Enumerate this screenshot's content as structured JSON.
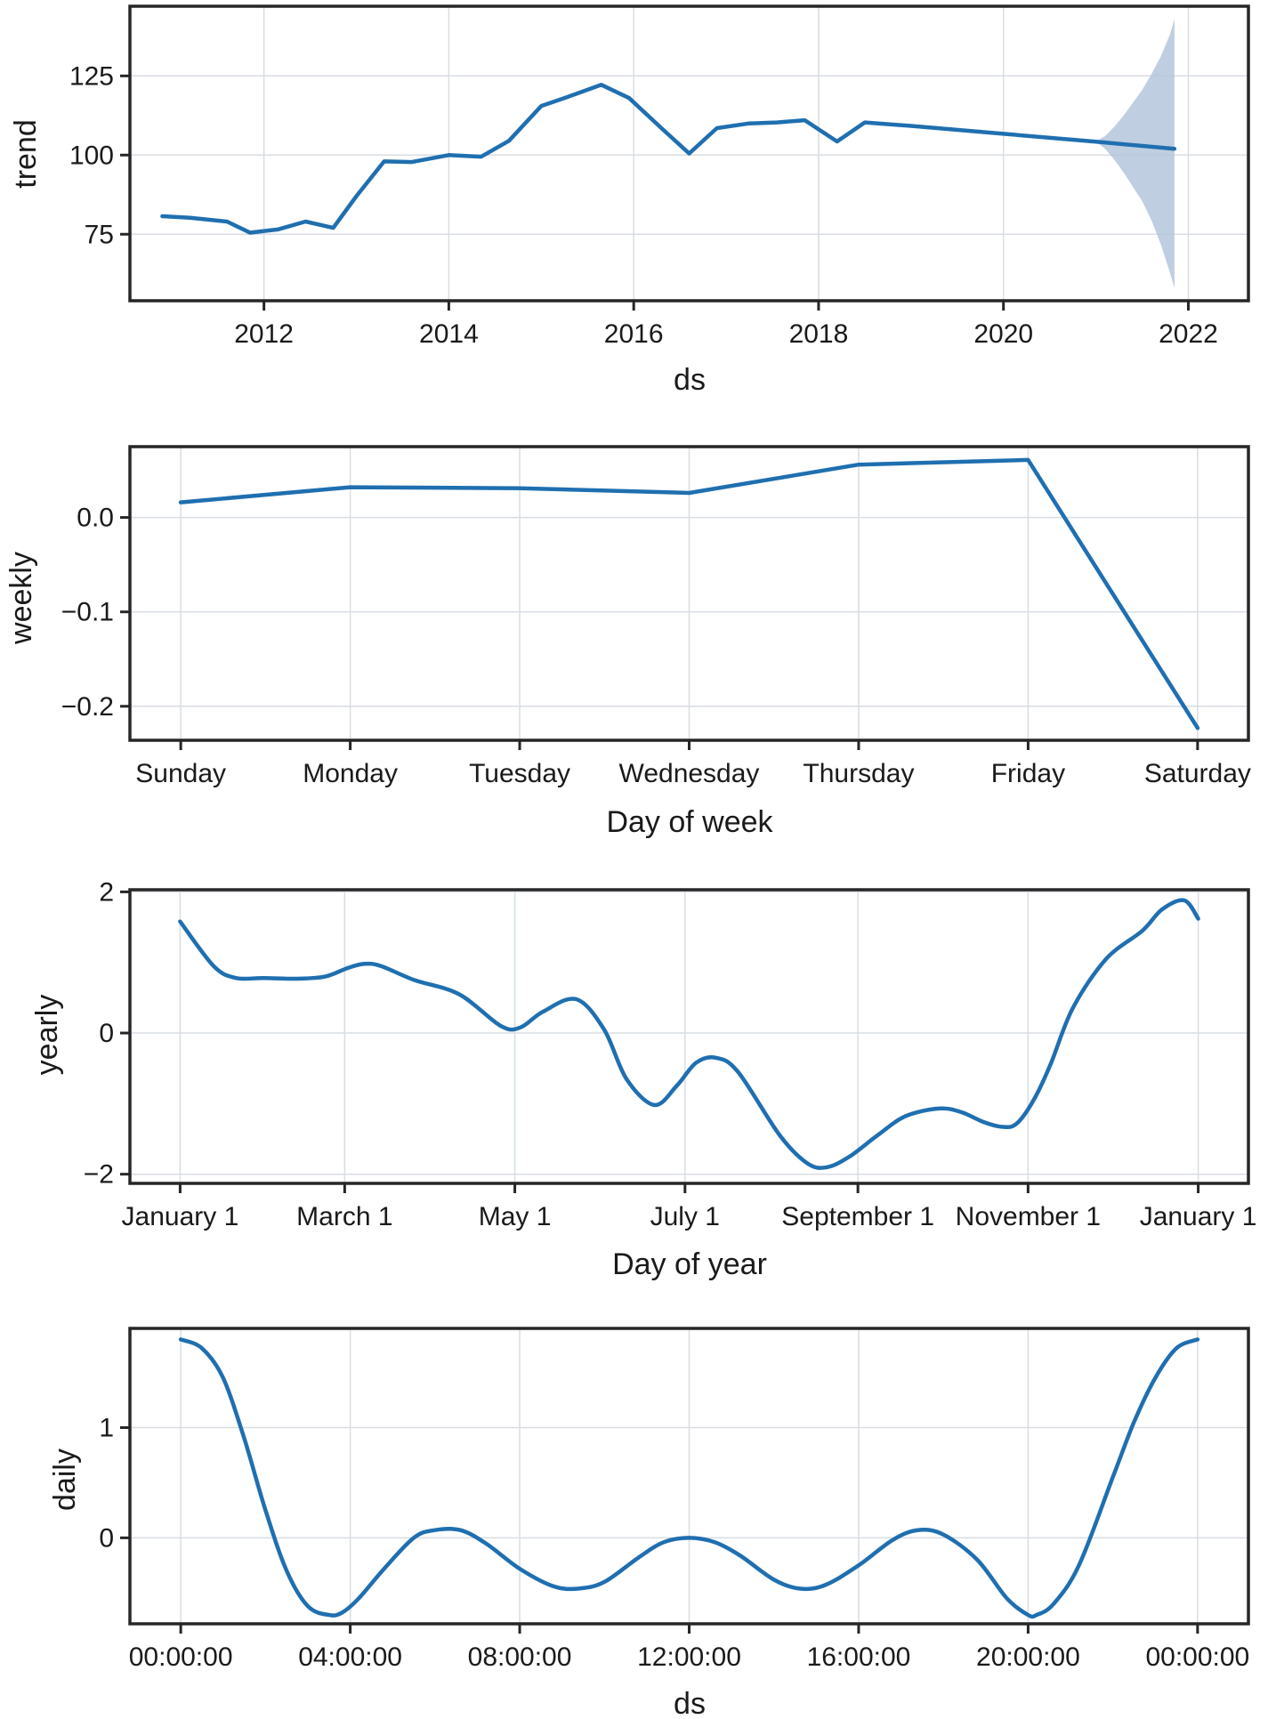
{
  "colors": {
    "line": "#1f6fb0",
    "band": "#b4c6dc",
    "grid": "#d9dde3",
    "frame": "#262626"
  },
  "chart_data": [
    {
      "type": "line",
      "ylabel": "trend",
      "xlabel": "ds",
      "x_kind": "year",
      "xticks": [
        2012,
        2014,
        2016,
        2018,
        2020,
        2022
      ],
      "xtick_labels": [
        "2012",
        "2014",
        "2016",
        "2018",
        "2020",
        "2022"
      ],
      "yticks": [
        75,
        100,
        125
      ],
      "ytick_labels": [
        "75",
        "100",
        "125"
      ],
      "xlim": [
        2010.55,
        2022.65
      ],
      "ylim": [
        54,
        147
      ],
      "grid": true,
      "series": [
        {
          "x": [
            2010.9,
            2011.2,
            2011.6,
            2011.85,
            2012.15,
            2012.45,
            2012.75,
            2013.0,
            2013.3,
            2013.6,
            2014.0,
            2014.35,
            2014.65,
            2015.0,
            2015.3,
            2015.65,
            2015.95,
            2016.3,
            2016.6,
            2016.9,
            2017.25,
            2017.55,
            2017.85,
            2018.2,
            2018.5,
            2019.0,
            2020.0,
            2021.0,
            2021.85
          ],
          "values": [
            80.7,
            80.2,
            79.0,
            75.5,
            76.5,
            79.0,
            77.0,
            87.0,
            98.0,
            97.8,
            100.0,
            99.5,
            104.5,
            115.5,
            118.5,
            122.2,
            118.0,
            108.5,
            100.5,
            108.5,
            110.0,
            110.3,
            111.0,
            104.3,
            110.3,
            109.2,
            106.7,
            104.2,
            102.0
          ]
        }
      ],
      "uncertainty_band": {
        "x": [
          2021.0,
          2021.1,
          2021.2,
          2021.3,
          2021.4,
          2021.5,
          2021.6,
          2021.7,
          2021.8,
          2021.85
        ],
        "upper": [
          104.2,
          106.0,
          109.0,
          112.5,
          116.5,
          120.5,
          125.5,
          131.0,
          138.0,
          143.0
        ],
        "lower": [
          104.2,
          102.0,
          98.5,
          94.5,
          90.0,
          85.5,
          79.5,
          72.0,
          63.0,
          58.0
        ]
      }
    },
    {
      "type": "line",
      "ylabel": "weekly",
      "xlabel": "Day of week",
      "x_kind": "index",
      "xticks": [
        0,
        1,
        2,
        3,
        4,
        5,
        6
      ],
      "xtick_labels": [
        "Sunday",
        "Monday",
        "Tuesday",
        "Wednesday",
        "Thursday",
        "Friday",
        "Saturday"
      ],
      "yticks": [
        0.0,
        -0.1,
        -0.2
      ],
      "ytick_labels": [
        "0.0",
        "−0.1",
        "−0.2"
      ],
      "xlim": [
        -0.3,
        6.3
      ],
      "ylim": [
        -0.236,
        0.075
      ],
      "grid": true,
      "series": [
        {
          "x": [
            0,
            1,
            2,
            3,
            4,
            5,
            6
          ],
          "values": [
            0.016,
            0.032,
            0.031,
            0.026,
            0.056,
            0.061,
            -0.223
          ]
        }
      ]
    },
    {
      "type": "line",
      "ylabel": "yearly",
      "xlabel": "Day of year",
      "x_kind": "day",
      "xticks": [
        0,
        59,
        120,
        181,
        243,
        304,
        365
      ],
      "xtick_labels": [
        "January 1",
        "March 1",
        "May 1",
        "July 1",
        "September 1",
        "November 1",
        "January 1"
      ],
      "yticks": [
        2,
        0,
        -2
      ],
      "ytick_labels": [
        "2",
        "0",
        "−2"
      ],
      "xlim": [
        -18,
        383
      ],
      "ylim": [
        -2.13,
        2.03
      ],
      "grid": true,
      "series": [
        {
          "x": [
            0,
            12,
            20,
            30,
            42,
            52,
            60,
            66,
            72,
            84,
            100,
            115,
            122,
            130,
            142,
            152,
            160,
            170,
            178,
            185,
            192,
            200,
            215,
            225,
            232,
            240,
            250,
            260,
            272,
            280,
            288,
            295,
            300,
            306,
            312,
            320,
            332,
            345,
            352,
            360,
            365
          ],
          "values": [
            1.58,
            0.95,
            0.78,
            0.78,
            0.77,
            0.8,
            0.92,
            0.98,
            0.95,
            0.75,
            0.55,
            0.1,
            0.08,
            0.3,
            0.48,
            0.05,
            -0.65,
            -1.02,
            -0.75,
            -0.42,
            -0.35,
            -0.55,
            -1.45,
            -1.85,
            -1.9,
            -1.75,
            -1.45,
            -1.18,
            -1.07,
            -1.12,
            -1.26,
            -1.33,
            -1.28,
            -0.95,
            -0.45,
            0.35,
            1.05,
            1.45,
            1.75,
            1.88,
            1.62
          ]
        }
      ]
    },
    {
      "type": "line",
      "ylabel": "daily",
      "xlabel": "ds",
      "x_kind": "hour",
      "xticks": [
        0,
        4,
        8,
        12,
        16,
        20,
        24
      ],
      "xtick_labels": [
        "00:00:00",
        "04:00:00",
        "08:00:00",
        "12:00:00",
        "16:00:00",
        "20:00:00",
        "00:00:00"
      ],
      "yticks": [
        1,
        0
      ],
      "ytick_labels": [
        "1",
        "0"
      ],
      "xlim": [
        -1.2,
        25.2
      ],
      "ylim": [
        -0.78,
        1.9
      ],
      "grid": true,
      "series": [
        {
          "x": [
            0,
            0.5,
            1.0,
            1.5,
            2.0,
            2.5,
            3.0,
            3.5,
            3.8,
            4.2,
            4.8,
            5.5,
            6.0,
            6.6,
            7.2,
            8.0,
            8.8,
            9.4,
            10.0,
            10.8,
            11.4,
            12.0,
            12.6,
            13.2,
            14.0,
            14.6,
            15.2,
            16.0,
            16.8,
            17.4,
            18.0,
            18.8,
            19.5,
            20.0,
            20.2,
            20.6,
            21.2,
            22.0,
            22.5,
            23.0,
            23.5,
            24.0
          ],
          "values": [
            1.8,
            1.72,
            1.45,
            0.9,
            0.25,
            -0.3,
            -0.62,
            -0.7,
            -0.68,
            -0.55,
            -0.28,
            0.0,
            0.07,
            0.07,
            -0.05,
            -0.28,
            -0.44,
            -0.46,
            -0.4,
            -0.18,
            -0.04,
            0.0,
            -0.04,
            -0.16,
            -0.38,
            -0.46,
            -0.43,
            -0.25,
            -0.02,
            0.07,
            0.03,
            -0.2,
            -0.55,
            -0.7,
            -0.7,
            -0.6,
            -0.25,
            0.55,
            1.05,
            1.45,
            1.72,
            1.8
          ]
        }
      ]
    }
  ]
}
